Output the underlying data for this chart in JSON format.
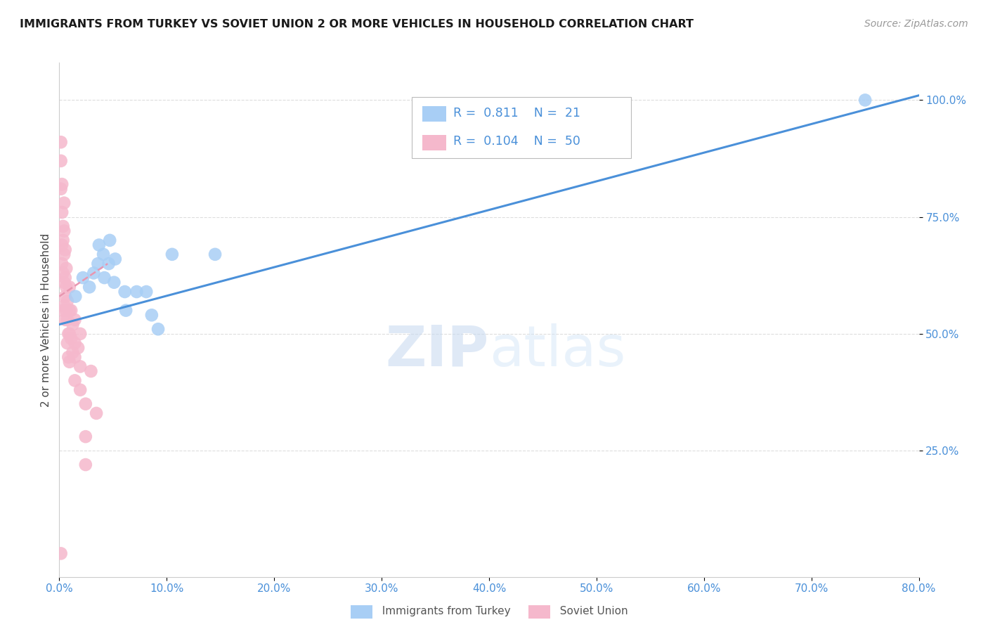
{
  "title": "IMMIGRANTS FROM TURKEY VS SOVIET UNION 2 OR MORE VEHICLES IN HOUSEHOLD CORRELATION CHART",
  "source": "Source: ZipAtlas.com",
  "ylabel_label": "2 or more Vehicles in Household",
  "xlim": [
    0.0,
    80.0
  ],
  "ylim": [
    -2.0,
    108.0
  ],
  "turkey_R": 0.811,
  "turkey_N": 21,
  "soviet_R": 0.104,
  "soviet_N": 50,
  "turkey_color": "#a8cef5",
  "soviet_color": "#f5b8cc",
  "turkey_line_color": "#4a90d9",
  "soviet_line_color": "#e896b0",
  "legend_label_turkey": "Immigrants from Turkey",
  "legend_label_soviet": "Soviet Union",
  "turkey_x": [
    1.5,
    2.2,
    2.8,
    3.2,
    3.6,
    3.7,
    4.1,
    4.2,
    4.6,
    4.7,
    5.1,
    5.2,
    6.1,
    6.2,
    7.2,
    8.1,
    8.6,
    9.2,
    10.5,
    14.5,
    75.0
  ],
  "turkey_y": [
    58,
    62,
    60,
    63,
    65,
    69,
    67,
    62,
    65,
    70,
    61,
    66,
    59,
    55,
    59,
    59,
    54,
    51,
    67,
    67,
    100
  ],
  "soviet_x": [
    0.15,
    0.15,
    0.15,
    0.15,
    0.25,
    0.25,
    0.25,
    0.25,
    0.35,
    0.35,
    0.35,
    0.35,
    0.45,
    0.45,
    0.45,
    0.45,
    0.45,
    0.55,
    0.55,
    0.55,
    0.55,
    0.65,
    0.65,
    0.65,
    0.75,
    0.75,
    0.75,
    0.85,
    0.85,
    0.95,
    0.95,
    0.95,
    0.95,
    1.1,
    1.1,
    1.25,
    1.25,
    1.45,
    1.45,
    1.45,
    1.45,
    1.75,
    1.95,
    1.95,
    1.95,
    2.45,
    2.45,
    2.45,
    2.95,
    3.45
  ],
  "soviet_y": [
    3,
    91,
    87,
    81,
    82,
    76,
    69,
    65,
    73,
    70,
    63,
    55,
    78,
    72,
    67,
    61,
    56,
    68,
    62,
    58,
    53,
    64,
    60,
    55,
    57,
    53,
    48,
    50,
    45,
    60,
    55,
    50,
    44,
    55,
    49,
    52,
    46,
    48,
    53,
    45,
    40,
    47,
    43,
    38,
    50,
    35,
    28,
    22,
    42,
    33
  ],
  "turkey_trend_x": [
    0,
    80
  ],
  "turkey_trend_y": [
    52,
    101
  ],
  "soviet_trend_x": [
    0.0,
    4.5
  ],
  "soviet_trend_y": [
    58,
    65
  ],
  "xticks": [
    0,
    10,
    20,
    30,
    40,
    50,
    60,
    70,
    80
  ],
  "yticks": [
    25,
    50,
    75,
    100
  ],
  "grid_color": "#dddddd",
  "tick_color": "#4a90d9",
  "axis_color": "#cccccc"
}
